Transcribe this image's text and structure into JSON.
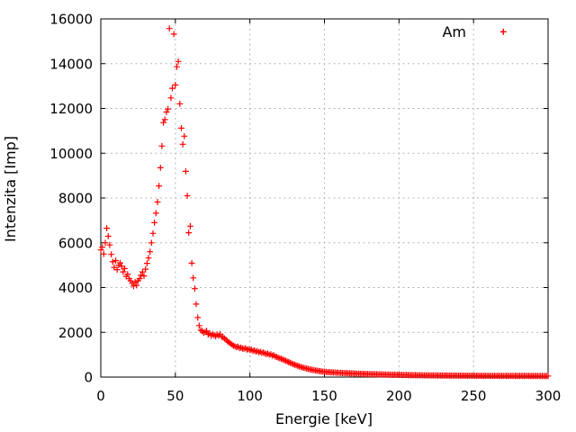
{
  "window": {
    "background": "#ffffff"
  },
  "chart_data": {
    "type": "scatter",
    "title": "",
    "xlabel": "Energie [keV]",
    "ylabel": "Intenzita [Imp]",
    "xlim": [
      0,
      300
    ],
    "ylim": [
      0,
      16000
    ],
    "xticks": [
      0,
      50,
      100,
      150,
      200,
      250,
      300
    ],
    "yticks": [
      0,
      2000,
      4000,
      6000,
      8000,
      10000,
      12000,
      14000,
      16000
    ],
    "grid": true,
    "grid_color": "#b5b5b5",
    "legend_position": "top-right-inside",
    "series": [
      {
        "name": "Am",
        "marker": "plus",
        "color": "#ff0000",
        "x_start": 0,
        "x_step": 1,
        "values": [
          5680,
          5800,
          5500,
          6000,
          6650,
          6290,
          5900,
          5480,
          5150,
          4900,
          5200,
          4800,
          5000,
          5100,
          4950,
          4700,
          4850,
          4500,
          4600,
          4400,
          4300,
          4190,
          4070,
          4250,
          4100,
          4300,
          4400,
          4550,
          4700,
          4520,
          4820,
          5080,
          5320,
          5600,
          6000,
          6420,
          6900,
          7320,
          7820,
          8540,
          9350,
          10320,
          11370,
          11500,
          11840,
          11970,
          15570,
          12470,
          12900,
          15320,
          13050,
          13860,
          14100,
          12210,
          11120,
          10400,
          10760,
          9190,
          8100,
          6450,
          6740,
          5090,
          4430,
          3950,
          3260,
          2660,
          2300,
          2100,
          2060,
          1980,
          2020,
          2060,
          1900,
          1960,
          1850,
          1920,
          1870,
          1820,
          1900,
          1850,
          1920,
          1800,
          1780,
          1730,
          1660,
          1600,
          1550,
          1500,
          1450,
          1400,
          1370,
          1340,
          1360,
          1300,
          1320,
          1280,
          1260,
          1290,
          1230,
          1250,
          1210,
          1230,
          1170,
          1190,
          1140,
          1160,
          1110,
          1130,
          1080,
          1100,
          1060,
          1030,
          1050,
          1000,
          1020,
          960,
          980,
          920,
          900,
          870,
          840,
          820,
          790,
          760,
          730,
          700,
          670,
          640,
          610,
          580,
          555,
          530,
          505,
          480,
          460,
          440,
          420,
          400,
          380,
          365,
          350,
          335,
          320,
          308,
          296,
          285,
          274,
          264,
          255,
          247,
          240,
          235,
          218,
          226,
          208,
          216,
          199,
          208,
          192,
          200,
          185,
          193,
          178,
          186,
          172,
          179,
          166,
          173,
          160,
          167,
          155,
          161,
          149,
          156,
          144,
          151,
          140,
          146,
          135,
          141,
          131,
          137,
          127,
          132,
          123,
          128,
          119,
          124,
          115,
          120,
          112,
          117,
          108,
          113,
          105,
          110,
          102,
          107,
          99,
          104,
          96,
          101,
          93,
          98,
          91,
          95,
          88,
          93,
          86,
          90,
          84,
          88,
          82,
          86,
          80,
          84,
          78,
          82,
          76,
          80,
          75,
          78,
          73,
          77,
          72,
          75,
          70,
          74,
          69,
          72,
          68,
          71,
          67,
          70,
          66,
          69,
          65,
          68,
          64,
          67,
          63,
          66,
          62,
          65,
          61,
          64,
          61,
          63,
          60,
          62,
          60,
          62,
          59,
          61,
          58,
          60,
          58,
          60,
          57,
          59,
          57,
          58,
          56,
          58,
          56,
          57,
          55,
          57,
          55,
          56,
          54,
          56,
          54,
          55,
          53,
          55,
          53,
          54,
          52,
          54,
          52,
          53,
          52,
          53,
          51,
          52,
          51,
          52,
          50,
          52,
          50,
          51,
          50,
          51,
          49,
          50,
          49,
          50,
          49,
          50,
          49
        ]
      }
    ]
  }
}
